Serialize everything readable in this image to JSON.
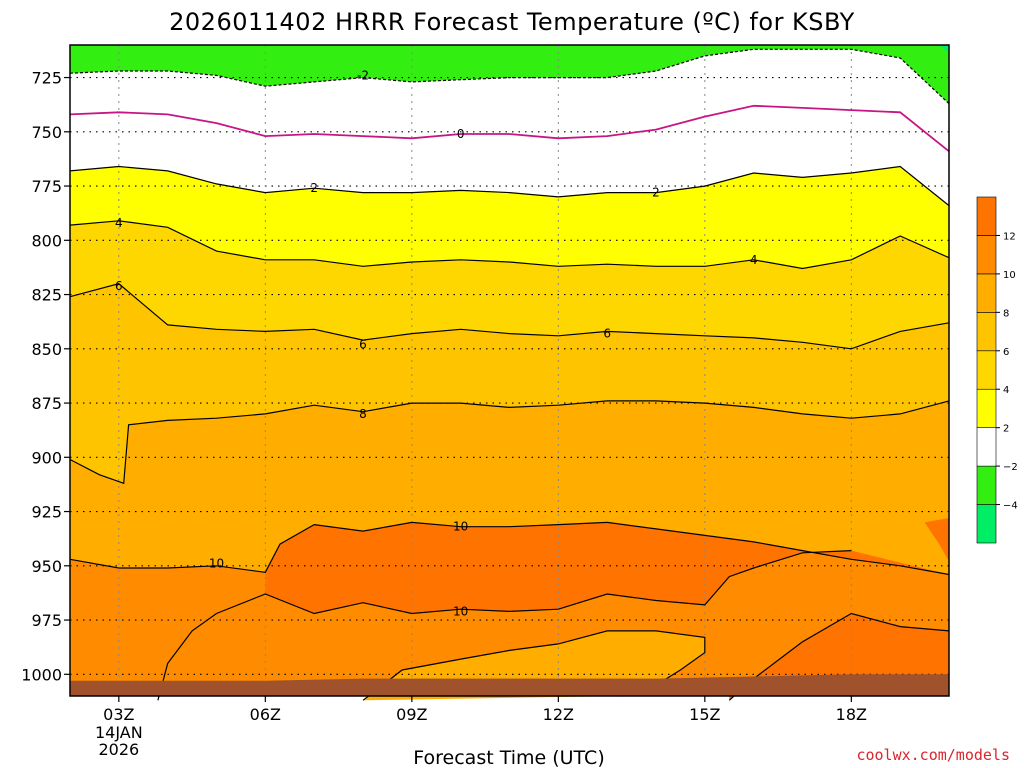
{
  "title": "2026011402 HRRR Forecast Temperature (ºC) for KSBY",
  "credit": "coolwx.com/models",
  "colors": {
    "band_below_m4": "#00ee66",
    "band_m4_m2": "#33ee11",
    "band_m2_2": "#ffffff",
    "band_2_4": "#ffff00",
    "band_4_6": "#ffd700",
    "band_6_8": "#ffc400",
    "band_8_10": "#ffae00",
    "band_10_12": "#ff8c00",
    "band_above_12": "#ff7400",
    "ground": "#a0522d",
    "zero_line": "#c71585",
    "contour": "#000000",
    "credit": "#d9262c"
  },
  "chart_data": {
    "type": "heatmap",
    "title": "2026011402 HRRR Forecast Temperature (ºC) for KSBY",
    "xlabel": "Forecast Time (UTC)",
    "ylabel": "",
    "x_hour_range": [
      2,
      20
    ],
    "ylim": [
      1010,
      710
    ],
    "x_ticks": [
      {
        "hour": 3,
        "label": "03Z",
        "sublabel1": "14JAN",
        "sublabel2": "2026"
      },
      {
        "hour": 6,
        "label": "06Z"
      },
      {
        "hour": 9,
        "label": "09Z"
      },
      {
        "hour": 12,
        "label": "12Z"
      },
      {
        "hour": 15,
        "label": "15Z"
      },
      {
        "hour": 18,
        "label": "18Z"
      }
    ],
    "y_ticks": [
      725,
      750,
      775,
      800,
      825,
      850,
      875,
      900,
      925,
      950,
      975,
      1000
    ],
    "y_tick_labels": [
      "725",
      "750",
      "775",
      "800",
      "825",
      "850",
      "875",
      "900",
      "925",
      "950",
      "975",
      "1000"
    ],
    "grid": true,
    "colorbar": {
      "levels": [
        -6,
        -4,
        -2,
        2,
        4,
        6,
        8,
        10,
        12,
        14
      ],
      "tick_labels": [
        "−4",
        "−2",
        "2",
        "4",
        "6",
        "8",
        "10",
        "12"
      ],
      "tick_values": [
        -4,
        -2,
        2,
        4,
        6,
        8,
        10,
        12
      ]
    },
    "contours": [
      {
        "level": -2,
        "label": "-2",
        "style": "dashed",
        "points": [
          [
            2,
            723
          ],
          [
            3,
            722
          ],
          [
            4,
            722
          ],
          [
            5,
            724
          ],
          [
            6,
            729
          ],
          [
            7,
            727
          ],
          [
            8,
            725
          ],
          [
            9,
            727
          ],
          [
            10,
            726
          ],
          [
            11,
            725
          ],
          [
            12,
            725
          ],
          [
            13,
            725
          ],
          [
            14,
            722
          ],
          [
            15,
            715
          ],
          [
            16,
            712
          ],
          [
            17,
            712
          ],
          [
            18,
            712
          ],
          [
            19,
            716
          ],
          [
            20,
            737
          ]
        ],
        "label_hour": 8,
        "label_p": 724
      },
      {
        "level": 0,
        "label": "0",
        "style": "solid",
        "points": [
          [
            2,
            742
          ],
          [
            3,
            741
          ],
          [
            4,
            742
          ],
          [
            5,
            746
          ],
          [
            6,
            752
          ],
          [
            7,
            751
          ],
          [
            8,
            752
          ],
          [
            9,
            753
          ],
          [
            10,
            751
          ],
          [
            11,
            751
          ],
          [
            12,
            753
          ],
          [
            13,
            752
          ],
          [
            14,
            749
          ],
          [
            15,
            743
          ],
          [
            16,
            738
          ],
          [
            17,
            739
          ],
          [
            18,
            740
          ],
          [
            19,
            741
          ],
          [
            20,
            759
          ]
        ],
        "label_hour": 10,
        "label_p": 751
      },
      {
        "level": 2,
        "label": "2",
        "style": "solid",
        "points": [
          [
            2,
            768
          ],
          [
            3,
            766
          ],
          [
            4,
            768
          ],
          [
            5,
            774
          ],
          [
            6,
            778
          ],
          [
            7,
            776
          ],
          [
            8,
            778
          ],
          [
            9,
            778
          ],
          [
            10,
            777
          ],
          [
            11,
            778
          ],
          [
            12,
            780
          ],
          [
            13,
            778
          ],
          [
            14,
            778
          ],
          [
            15,
            775
          ],
          [
            16,
            769
          ],
          [
            17,
            771
          ],
          [
            18,
            769
          ],
          [
            19,
            766
          ],
          [
            20,
            784
          ]
        ],
        "label_hour": 7,
        "label_p": 776
      },
      {
        "level": 2,
        "label": "2",
        "style": "solid",
        "label_only": true,
        "label_hour": 14,
        "label_p": 778
      },
      {
        "level": 4,
        "label": "4",
        "style": "solid",
        "points": [
          [
            2,
            793
          ],
          [
            3,
            791
          ],
          [
            4,
            794
          ],
          [
            5,
            805
          ],
          [
            6,
            809
          ],
          [
            7,
            809
          ],
          [
            8,
            812
          ],
          [
            9,
            810
          ],
          [
            10,
            809
          ],
          [
            11,
            810
          ],
          [
            12,
            812
          ],
          [
            13,
            811
          ],
          [
            14,
            812
          ],
          [
            15,
            812
          ],
          [
            16,
            809
          ],
          [
            17,
            813
          ],
          [
            18,
            809
          ],
          [
            19,
            798
          ],
          [
            20,
            808
          ]
        ],
        "label_hour": 16,
        "label_p": 809
      },
      {
        "level": 4,
        "label": "4",
        "style": "solid",
        "label_only": true,
        "label_hour": 3,
        "label_p": 792
      },
      {
        "level": 6,
        "label": "6",
        "style": "solid",
        "points": [
          [
            2,
            826
          ],
          [
            3,
            820
          ],
          [
            4,
            839
          ],
          [
            5,
            841
          ],
          [
            6,
            842
          ],
          [
            7,
            841
          ],
          [
            8,
            846
          ],
          [
            9,
            843
          ],
          [
            10,
            841
          ],
          [
            11,
            843
          ],
          [
            12,
            844
          ],
          [
            13,
            842
          ],
          [
            14,
            843
          ],
          [
            15,
            844
          ],
          [
            16,
            845
          ],
          [
            17,
            847
          ],
          [
            18,
            850
          ],
          [
            19,
            842
          ],
          [
            20,
            838
          ]
        ],
        "label_hour": 8,
        "label_p": 848
      },
      {
        "level": 6,
        "label": "6",
        "style": "solid",
        "label_only": true,
        "label_hour": 13,
        "label_p": 843
      },
      {
        "level": 6,
        "label": "6",
        "style": "solid",
        "label_only": true,
        "label_hour": 3,
        "label_p": 821
      },
      {
        "level": 8,
        "label": "8",
        "style": "solid",
        "points": [
          [
            2,
            901
          ],
          [
            2.6,
            908
          ],
          [
            3.1,
            912
          ],
          [
            3.2,
            885
          ],
          [
            4,
            883
          ],
          [
            5,
            882
          ],
          [
            6,
            880
          ],
          [
            7,
            876
          ],
          [
            8,
            879
          ],
          [
            9,
            875
          ],
          [
            10,
            875
          ],
          [
            11,
            877
          ],
          [
            12,
            876
          ],
          [
            13,
            874
          ],
          [
            14,
            874
          ],
          [
            15,
            875
          ],
          [
            16,
            877
          ],
          [
            17,
            880
          ],
          [
            18,
            882
          ],
          [
            19,
            880
          ],
          [
            20,
            874
          ]
        ],
        "label_hour": 8,
        "label_p": 880
      },
      {
        "level": 10,
        "label": "10",
        "style": "solid",
        "points": [
          [
            2,
            947
          ],
          [
            3,
            951
          ],
          [
            4,
            951
          ],
          [
            5,
            950
          ],
          [
            6,
            953
          ],
          [
            6.3,
            940
          ],
          [
            7,
            931
          ],
          [
            8,
            934
          ],
          [
            9,
            930
          ],
          [
            10,
            932
          ],
          [
            11,
            932
          ],
          [
            12,
            931
          ],
          [
            13,
            930
          ],
          [
            14,
            933
          ],
          [
            15,
            936
          ],
          [
            16,
            939
          ],
          [
            17,
            943
          ],
          [
            18,
            947
          ],
          [
            19,
            950
          ],
          [
            20,
            954
          ]
        ],
        "label_hour": 5,
        "label_p": 949
      },
      {
        "level": 10,
        "label": "10",
        "style": "solid",
        "label_only": true,
        "label_hour": 10,
        "label_p": 932
      },
      {
        "level": 10,
        "label": "10",
        "style": "solid",
        "points": [
          [
            3.8,
            1012
          ],
          [
            4,
            995
          ],
          [
            4.5,
            980
          ],
          [
            5,
            972
          ],
          [
            6,
            963
          ],
          [
            7,
            972
          ],
          [
            8,
            967
          ],
          [
            9,
            972
          ],
          [
            10,
            970
          ],
          [
            11,
            971
          ],
          [
            12,
            970
          ],
          [
            13,
            963
          ],
          [
            14,
            966
          ],
          [
            15,
            968
          ],
          [
            15.5,
            955
          ],
          [
            16,
            951
          ],
          [
            17,
            944
          ],
          [
            18,
            943
          ]
        ],
        "label_hour": 10,
        "label_p": 971
      },
      {
        "level": 12,
        "label": "12",
        "style": "solid",
        "points": [
          [
            8,
            1012
          ],
          [
            8.8,
            998
          ],
          [
            10,
            993
          ],
          [
            11,
            989
          ],
          [
            12,
            986
          ],
          [
            13,
            980
          ],
          [
            14,
            980
          ],
          [
            15,
            983
          ],
          [
            15,
            990
          ],
          [
            14.5,
            998
          ],
          [
            14,
            1005
          ],
          [
            13.2,
            1010
          ]
        ]
      },
      {
        "level": 12,
        "label": "12",
        "style": "solid",
        "points": [
          [
            15.5,
            1012
          ],
          [
            16,
            1002
          ],
          [
            17,
            985
          ],
          [
            18,
            972
          ],
          [
            19,
            978
          ],
          [
            20,
            980
          ]
        ]
      }
    ],
    "ground_profile": [
      [
        2,
        1003
      ],
      [
        4,
        1003
      ],
      [
        6,
        1003
      ],
      [
        8,
        1002
      ],
      [
        10,
        1002
      ],
      [
        12,
        1002
      ],
      [
        14,
        1002
      ],
      [
        16,
        1001
      ],
      [
        18,
        1000
      ],
      [
        20,
        1000
      ]
    ]
  }
}
